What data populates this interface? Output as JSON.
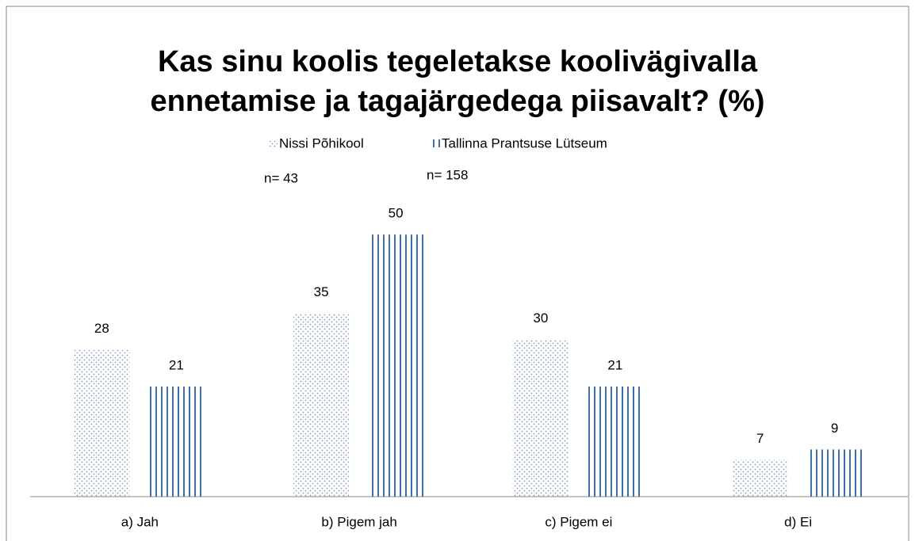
{
  "chart_data": {
    "type": "bar",
    "title": "Kas sinu koolis tegeleletakse koolivägivalla ennetamise ja tagajärgedega piisavalt? (%)",
    "title_lines": [
      "Kas sinu koolis tegeletakse koolivägivalla",
      "ennetamise ja tagajärgedega piisavalt? (%)"
    ],
    "annotations": [
      "n= 43",
      "n= 158"
    ],
    "categories": [
      "a) Jah",
      "b) Pigem jah",
      "c) Pigem ei",
      "d) Ei"
    ],
    "series": [
      {
        "name": "Nissi Põhikool",
        "color": "#7f9cc4",
        "pattern": "dots",
        "values": [
          28,
          35,
          30,
          7
        ]
      },
      {
        "name": "Tallinna Prantsuse Lütseum",
        "color": "#3f6fae",
        "pattern": "stripes",
        "values": [
          21,
          50,
          21,
          9
        ]
      }
    ],
    "ylim": [
      0,
      60
    ]
  }
}
